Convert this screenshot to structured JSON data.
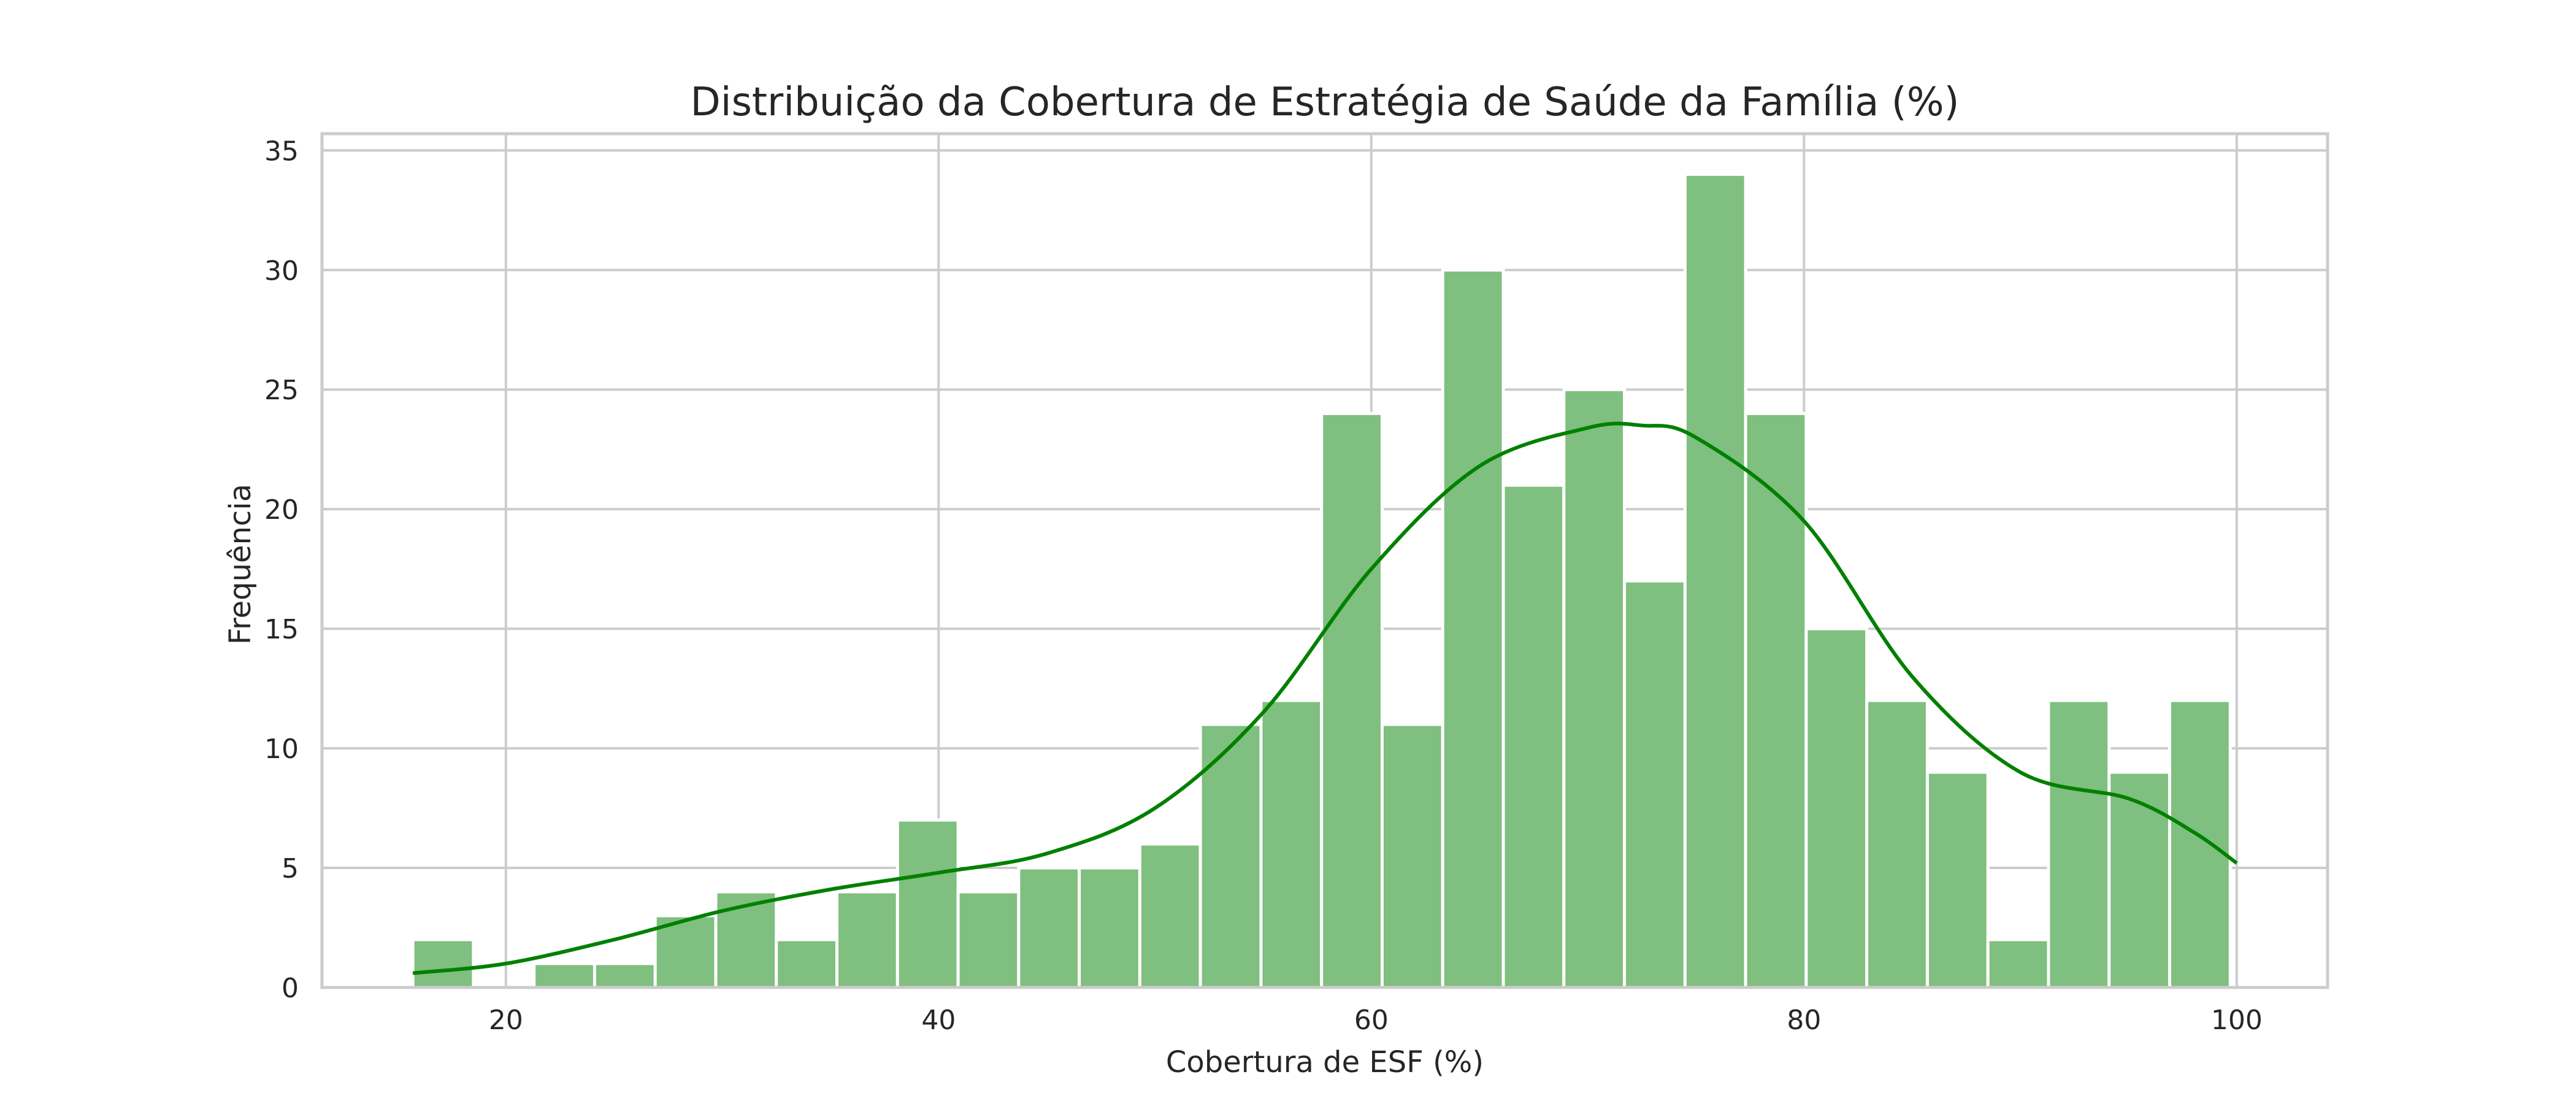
{
  "chart_data": {
    "type": "bar",
    "title": "Distribuição da Cobertura de Estratégia de Saúde da Família (%)",
    "xlabel": "Cobertura de ESF (%)",
    "ylabel": "Frequência",
    "xlim": [
      11.5,
      104.2
    ],
    "ylim": [
      0,
      35.7
    ],
    "xticks": [
      20,
      40,
      60,
      80,
      100
    ],
    "yticks": [
      0,
      5,
      10,
      15,
      20,
      25,
      30,
      35
    ],
    "grid": true,
    "bin_start": 15.7,
    "bin_width": 2.8,
    "values": [
      2,
      0,
      1,
      1,
      3,
      4,
      2,
      4,
      7,
      4,
      5,
      5,
      6,
      11,
      12,
      24,
      11,
      30,
      21,
      25,
      17,
      34,
      24,
      15,
      12,
      9,
      2,
      12,
      9,
      12
    ],
    "kde": {
      "x": [
        15.7,
        20,
        25,
        30,
        35,
        40,
        45,
        50,
        55,
        60,
        65,
        70,
        72.5,
        75,
        80,
        85,
        90,
        95,
        98,
        100
      ],
      "y": [
        0.6,
        1.0,
        2.0,
        3.2,
        4.1,
        4.8,
        5.6,
        7.5,
        11.5,
        17.5,
        21.8,
        23.4,
        23.5,
        23.0,
        19.5,
        13.0,
        9.0,
        7.9,
        6.5,
        5.2
      ]
    },
    "colors": {
      "bar_fill": "#7fbf7f",
      "bar_stroke": "#ffffff",
      "kde_line": "#008000",
      "grid": "#cccccc",
      "frame": "#cccccc"
    }
  }
}
